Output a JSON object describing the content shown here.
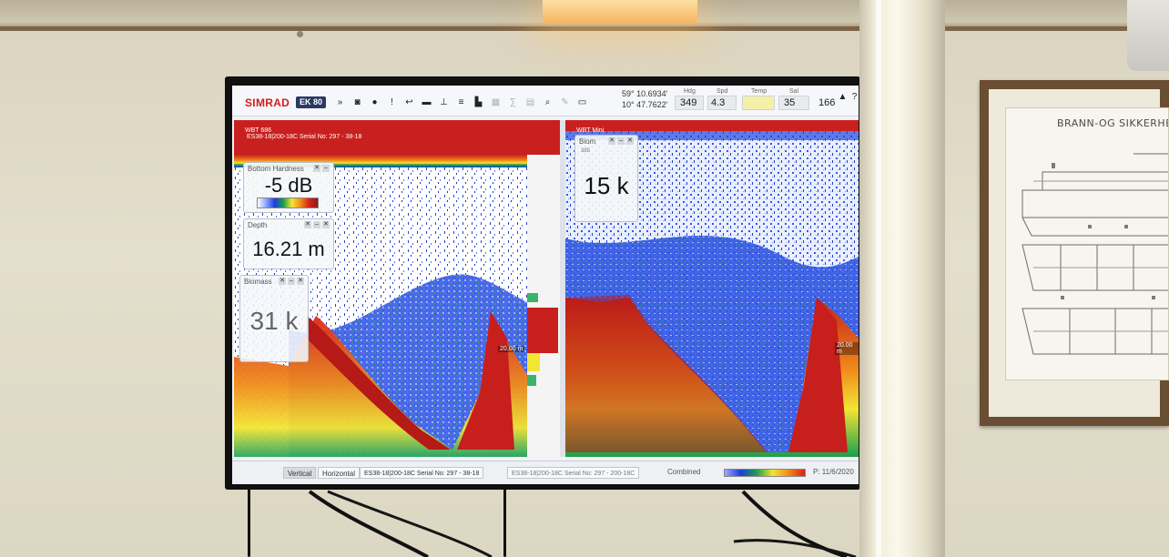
{
  "toolbar": {
    "logo": "SIMRAD",
    "product": "EK 80",
    "latitude": "59° 10.6934'",
    "longitude": "10° 47.7622'",
    "heading_label": "Hdg",
    "heading_value": "349",
    "speed_label": "Spd",
    "speed_value": "4.3",
    "temp_label": "Temp",
    "sal_label": "Sal",
    "sal_value": "35",
    "last_value": "166",
    "icons": [
      "chevron-down-icon",
      "camera-icon",
      "record-icon",
      "alert-icon",
      "back-icon",
      "ruler-icon",
      "pin-icon",
      "bars-icon",
      "chart-icon",
      "layers-icon",
      "sigma-icon",
      "grid-icon",
      "zoom-icon",
      "wrench-icon",
      "screen-icon",
      "warning-icon",
      "help-icon"
    ]
  },
  "left_panel": {
    "title_1": "WBT 686",
    "title_2": "ES38-18|200-18C Serial No: 297 - 38-18",
    "bottom_hardness": {
      "label": "Bottom Hardness",
      "value": "-5 dB"
    },
    "depth": {
      "label": "Depth",
      "value": "16.21 m"
    },
    "biomass": {
      "label": "Biomass",
      "value": "31 k"
    },
    "depth_marker": "20.00 m"
  },
  "right_panel": {
    "title": "WBT Mini",
    "biom": {
      "label": "Biom",
      "sub": "385",
      "value": "15 k"
    },
    "depth_marker": "20.00 m"
  },
  "status_bar": {
    "tab_vertical": "Vertical",
    "tab_horizontal": "Horizontal",
    "channel_1": "ES38-18|200-18C Serial No: 297 - 38-18",
    "channel_2": "ES38-18|200-18C Serial No: 297 - 200-18C",
    "combined": "Combined",
    "playback": "P: 11/6/2020"
  },
  "wall": {
    "plan_title": "BRANN-OG SIKKERHETSP"
  },
  "colors": {
    "simrad_red": "#d21d1d",
    "echo_red": "#c8201e",
    "frame_wood": "#6a4e33"
  }
}
